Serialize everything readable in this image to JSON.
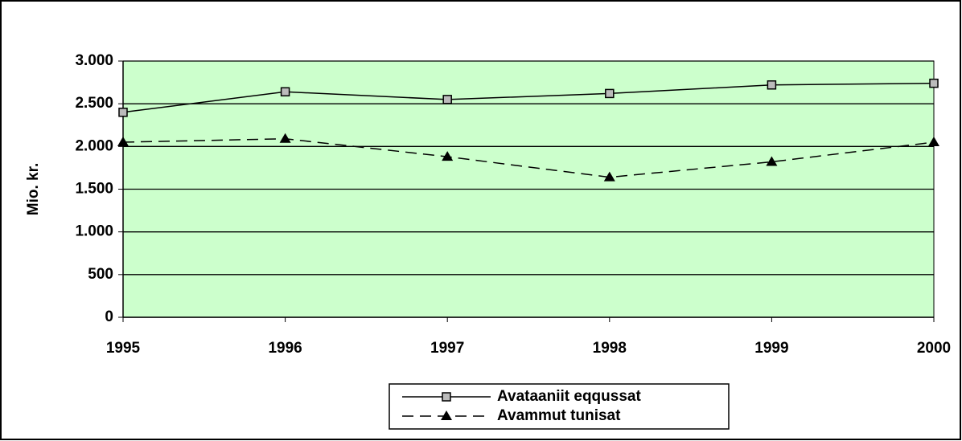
{
  "chart_data": {
    "type": "line",
    "y_label": "Mio. kr.",
    "x": [
      1995,
      1996,
      1997,
      1998,
      1999,
      2000
    ],
    "xlim": [
      1995,
      2000
    ],
    "xticks": [
      1995,
      1996,
      1997,
      1998,
      1999,
      2000
    ],
    "ylim": [
      0,
      3000
    ],
    "yticks": [
      0,
      500,
      {
        "value": 1000,
        "label": "1.000"
      },
      {
        "value": 1500,
        "label": "1.500"
      },
      {
        "value": 2000,
        "label": "2.000"
      },
      {
        "value": 2500,
        "label": "2.500"
      },
      {
        "value": 3000,
        "label": "3.000"
      }
    ],
    "grid": true,
    "plot_background": "#ccffcc",
    "legend": "bottom",
    "series": [
      {
        "name": "Avataaniit eqqussat",
        "color": "#000000",
        "line_style": "solid",
        "marker": "square",
        "values": [
          2400,
          2640,
          2550,
          2620,
          2720,
          2740
        ]
      },
      {
        "name": "Avammut tunisat",
        "color": "#000000",
        "line_style": "dashed",
        "marker": "triangle",
        "values": [
          2050,
          2090,
          1880,
          1640,
          1820,
          2050
        ]
      }
    ]
  }
}
